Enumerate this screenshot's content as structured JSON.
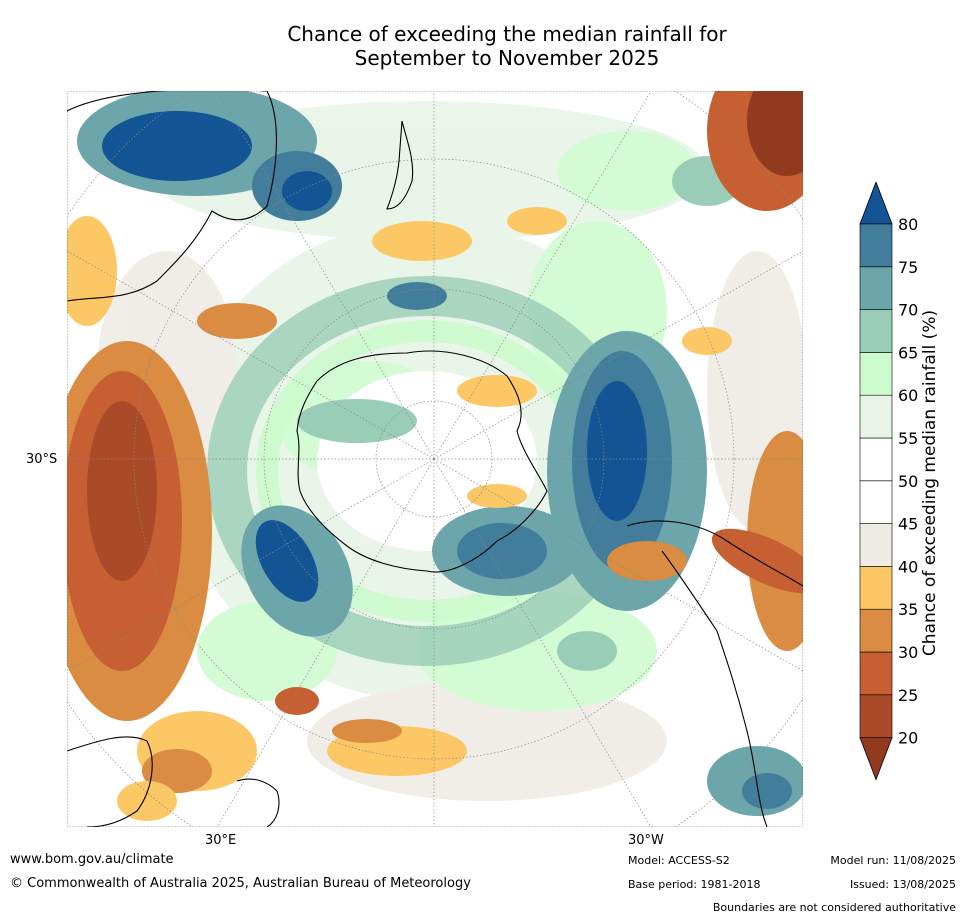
{
  "title_line1": "Chance of exceeding the median rainfall for",
  "title_line2": "September to November 2025",
  "map": {
    "projection": "south-polar-stereographic",
    "lat_labels": [
      "30°S"
    ],
    "lon_labels": [
      "30°E",
      "30°W"
    ]
  },
  "colorbar": {
    "label": "Chance of exceeding median rainfall (%)",
    "ticks": [
      "20",
      "25",
      "30",
      "35",
      "40",
      "45",
      "50",
      "55",
      "60",
      "65",
      "70",
      "75",
      "80"
    ],
    "colors": [
      "#923a1e",
      "#aa4a28",
      "#c65f31",
      "#d98c42",
      "#fcc865",
      "#eeebe4",
      "#ffffff",
      "#ffffff",
      "#e7f4e7",
      "#ccfbcd",
      "#9acdb7",
      "#6ca5aa",
      "#437d9c",
      "#135495"
    ],
    "extend": "both"
  },
  "footer": {
    "website": "www.bom.gov.au/climate",
    "copyright": "© Commonwealth of Australia 2025, Australian Bureau of Meteorology",
    "model": "Model: ACCESS-S2",
    "base_period": "Base period: 1981-2018",
    "model_run": "Model run: 11/08/2025",
    "issued": "Issued: 13/08/2025",
    "disclaimer": "Boundaries are not considered authoritative"
  }
}
